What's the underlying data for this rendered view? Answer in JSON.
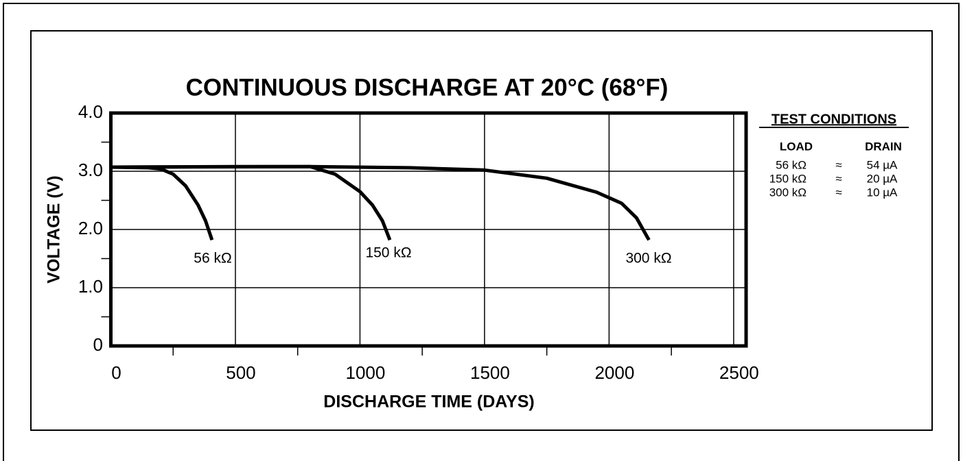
{
  "chart_data": {
    "type": "line",
    "title": "CONTINUOUS DISCHARGE AT 20°C (68°F)",
    "x_label": "DISCHARGE TIME (DAYS)",
    "y_label": "VOLTAGE (V)",
    "xlim": [
      0,
      2550
    ],
    "ylim": [
      0,
      4
    ],
    "xticks": [
      0,
      500,
      1000,
      1500,
      2000,
      2500
    ],
    "yticks": [
      0,
      {
        "value": 1,
        "label": "1.0"
      },
      {
        "value": 2,
        "label": "2.0"
      },
      {
        "value": 3,
        "label": "3.0"
      },
      {
        "value": 4,
        "label": "4.0"
      }
    ],
    "x_minor_ticks": [
      250,
      750,
      1250,
      1750,
      2250
    ],
    "y_minor_ticks": [
      0.5,
      1.5,
      2.5,
      3.5
    ],
    "grid": true,
    "series": [
      {
        "name": "56 kΩ",
        "color": "#000000",
        "x": [
          0,
          150,
          200,
          250,
          300,
          350,
          380,
          406
        ],
        "values": [
          3.07,
          3.06,
          3.04,
          2.95,
          2.75,
          2.42,
          2.15,
          1.82
        ]
      },
      {
        "name": "150 kΩ",
        "color": "#000000",
        "x": [
          0,
          500,
          800,
          900,
          1000,
          1050,
          1090,
          1120
        ],
        "values": [
          3.07,
          3.08,
          3.08,
          2.95,
          2.65,
          2.42,
          2.15,
          1.82
        ]
      },
      {
        "name": "300 kΩ",
        "color": "#000000",
        "x": [
          0,
          800,
          1200,
          1500,
          1750,
          1950,
          2050,
          2110,
          2160
        ],
        "values": [
          3.07,
          3.08,
          3.06,
          3.02,
          2.88,
          2.64,
          2.45,
          2.2,
          1.82
        ]
      }
    ]
  },
  "test_conditions": {
    "title": "TEST CONDITIONS",
    "columns": [
      "LOAD",
      "DRAIN"
    ],
    "rows": [
      [
        "56 kΩ",
        "≈",
        "54 µA"
      ],
      [
        "150 kΩ",
        "≈",
        "20 µA"
      ],
      [
        "300 kΩ",
        "≈",
        "10 µA"
      ]
    ]
  }
}
